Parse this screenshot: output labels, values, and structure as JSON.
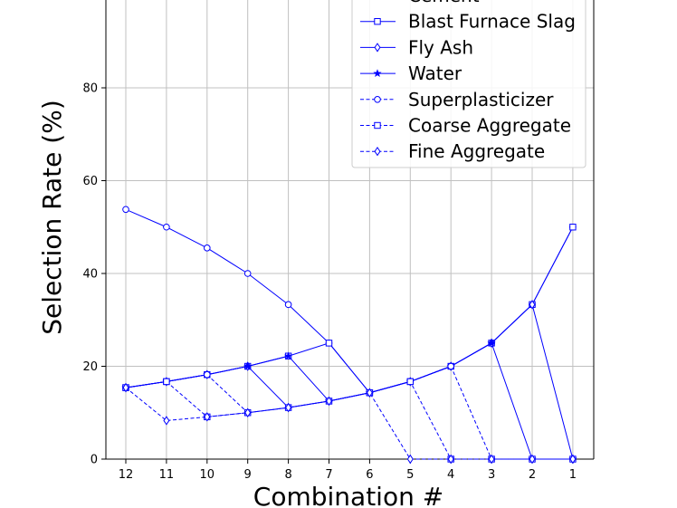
{
  "chart_data": {
    "type": "line",
    "title": "",
    "xlabel": "Combination #",
    "ylabel": "Selection Rate (%)",
    "categories": [
      "12",
      "11",
      "10",
      "9",
      "8",
      "7",
      "6",
      "5",
      "4",
      "3",
      "2",
      "1"
    ],
    "ylim": [
      0,
      100
    ],
    "yticks": [
      0,
      20,
      40,
      60,
      80
    ],
    "grid": true,
    "legend_position": "top-right",
    "line_color": "#0000ff",
    "series": [
      {
        "name": "Cement",
        "marker": "circle",
        "dash": "solid",
        "values": [
          53.8,
          50.0,
          45.5,
          40.0,
          33.3,
          25.0,
          14.3,
          16.7,
          20.0,
          25.0,
          33.3,
          50.0
        ]
      },
      {
        "name": "Blast Furnace Slag",
        "marker": "square",
        "dash": "solid",
        "values": [
          15.4,
          16.7,
          18.2,
          20.0,
          22.2,
          25.0,
          14.3,
          16.7,
          20.0,
          25.0,
          33.3,
          50.0
        ]
      },
      {
        "name": "Fly Ash",
        "marker": "diamond",
        "dash": "solid",
        "values": [
          15.4,
          16.7,
          18.2,
          20.0,
          11.1,
          12.5,
          14.3,
          16.7,
          20.0,
          25.0,
          33.3,
          0.0
        ]
      },
      {
        "name": "Water",
        "marker": "star",
        "dash": "solid",
        "values": [
          15.4,
          16.7,
          18.2,
          20.0,
          22.2,
          12.5,
          14.3,
          16.7,
          20.0,
          25.0,
          0.0,
          0.0
        ]
      },
      {
        "name": "Superplasticizer",
        "marker": "circle",
        "dash": "dashed",
        "values": [
          15.4,
          16.7,
          18.2,
          10.0,
          11.1,
          12.5,
          14.3,
          16.7,
          20.0,
          0.0,
          0.0,
          0.0
        ]
      },
      {
        "name": "Coarse Aggregate",
        "marker": "square",
        "dash": "dashed",
        "values": [
          15.4,
          16.7,
          9.1,
          10.0,
          11.1,
          12.5,
          14.3,
          16.7,
          0.0,
          0.0,
          0.0,
          0.0
        ]
      },
      {
        "name": "Fine Aggregate",
        "marker": "diamond",
        "dash": "dashed",
        "values": [
          15.4,
          8.3,
          9.1,
          10.0,
          11.1,
          12.5,
          14.3,
          0.0,
          0.0,
          0.0,
          0.0,
          0.0
        ]
      }
    ]
  }
}
